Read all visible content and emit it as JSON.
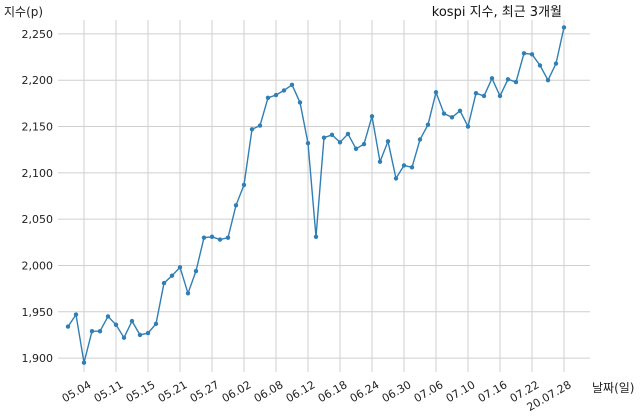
{
  "chart_data": {
    "type": "line",
    "title": "kospi 지수, 최근 3개월",
    "xlabel": "날짜(일)",
    "ylabel": "지수(p)",
    "ylim": [
      1885,
      2265
    ],
    "yticks": [
      1900,
      1950,
      2000,
      2050,
      2100,
      2150,
      2200,
      2250
    ],
    "ytick_labels": [
      "1,900",
      "1,950",
      "2,000",
      "2,050",
      "2,100",
      "2,150",
      "2,200",
      "2,250"
    ],
    "xticks": [
      {
        "index": 2,
        "label": "05.04"
      },
      {
        "index": 6,
        "label": "05.11"
      },
      {
        "index": 10,
        "label": "05.15"
      },
      {
        "index": 14,
        "label": "05.21"
      },
      {
        "index": 18,
        "label": "05.27"
      },
      {
        "index": 22,
        "label": "06.02"
      },
      {
        "index": 26,
        "label": "06.08"
      },
      {
        "index": 30,
        "label": "06.12"
      },
      {
        "index": 34,
        "label": "06.18"
      },
      {
        "index": 38,
        "label": "06.24"
      },
      {
        "index": 42,
        "label": "06.30"
      },
      {
        "index": 46,
        "label": "07.06"
      },
      {
        "index": 50,
        "label": "07.10"
      },
      {
        "index": 54,
        "label": "07.16"
      },
      {
        "index": 58,
        "label": "07.22"
      },
      {
        "index": 62,
        "label": "20.07.28"
      }
    ],
    "grid": true,
    "series": [
      {
        "values": [
          1934,
          1947,
          1895,
          1929,
          1929,
          1945,
          1936,
          1922,
          1940,
          1925,
          1927,
          1937,
          1981,
          1989,
          1998,
          1970,
          1994,
          2030,
          2031,
          2028,
          2030,
          2065,
          2087,
          2147,
          2151,
          2181,
          2184,
          2189,
          2195,
          2176,
          2132,
          2031,
          2138,
          2141,
          2133,
          2142,
          2126,
          2131,
          2161,
          2112,
          2134,
          2094,
          2108,
          2106,
          2136,
          2152,
          2187,
          2164,
          2160,
          2167,
          2150,
          2186,
          2183,
          2202,
          2183,
          2201,
          2198,
          2229,
          2228,
          2216,
          2200,
          2218,
          2257
        ]
      }
    ]
  }
}
